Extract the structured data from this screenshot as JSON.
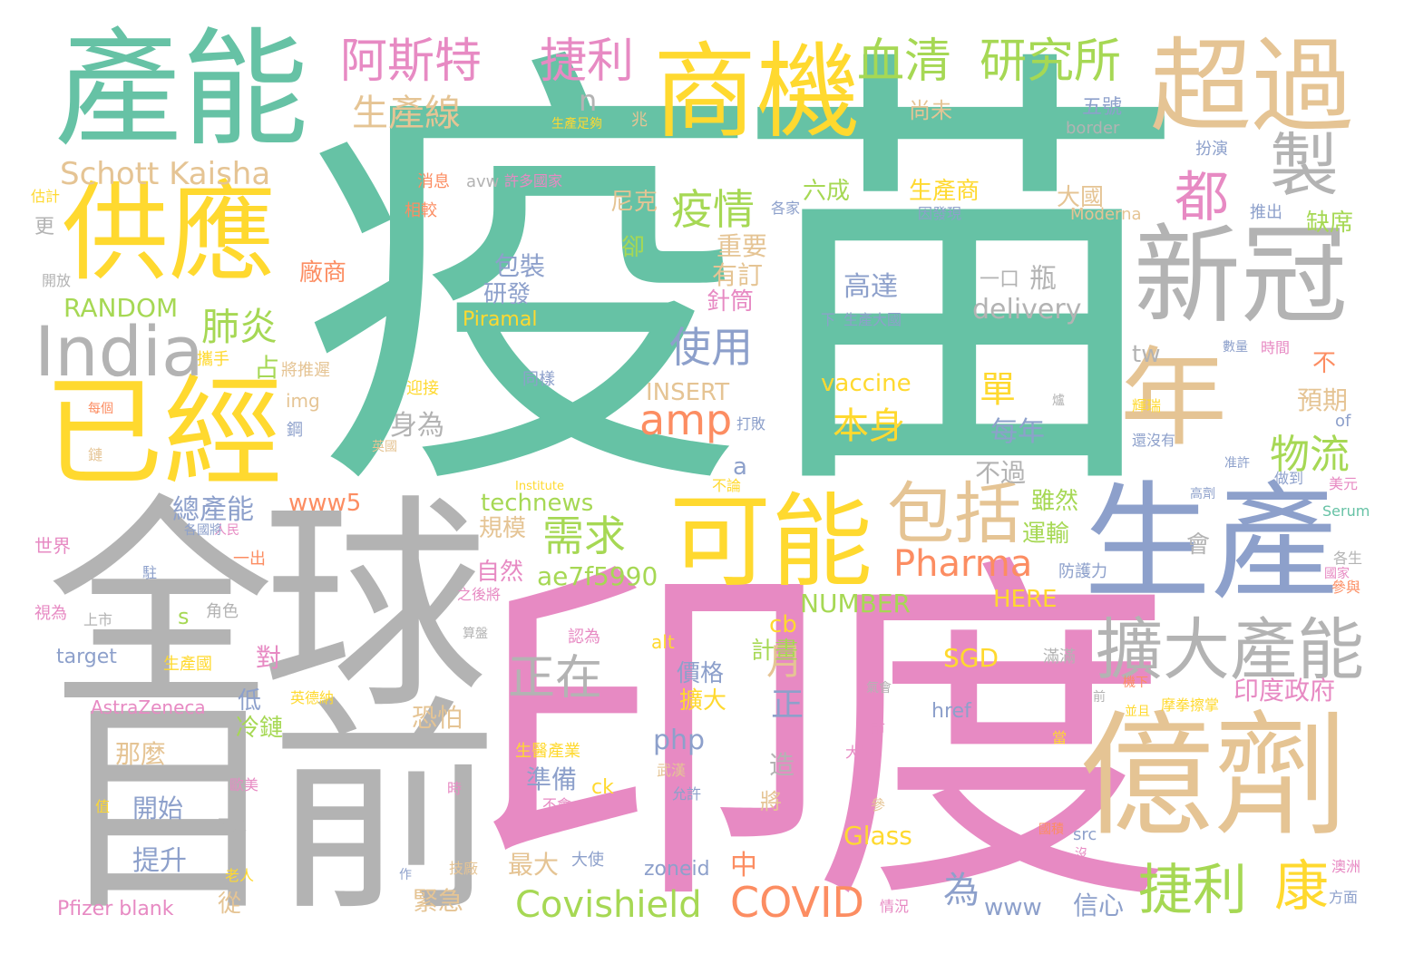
{
  "palette": {
    "green": "#66c2a5",
    "orange": "#fc8d62",
    "blue": "#8da0cb",
    "pink": "#e78ac3",
    "lime": "#a6d854",
    "yellow": "#ffd92f",
    "tan": "#e5c494",
    "gray": "#b3b3b3"
  },
  "words": [
    {
      "text": "疫苗",
      "color": "green"
    },
    {
      "text": "印度",
      "color": "pink"
    },
    {
      "text": "全球",
      "color": "gray"
    },
    {
      "text": "目前",
      "color": "gray"
    },
    {
      "text": "產能",
      "color": "green"
    },
    {
      "text": "供應",
      "color": "yellow"
    },
    {
      "text": "已經",
      "color": "yellow"
    },
    {
      "text": "商機",
      "color": "yellow"
    },
    {
      "text": "超過",
      "color": "tan"
    },
    {
      "text": "新冠",
      "color": "gray"
    },
    {
      "text": "年",
      "color": "tan"
    },
    {
      "text": "生產",
      "color": "blue"
    },
    {
      "text": "億劑",
      "color": "tan"
    },
    {
      "text": "可能",
      "color": "yellow"
    },
    {
      "text": "包括",
      "color": "tan"
    },
    {
      "text": "擴大產能",
      "color": "gray"
    },
    {
      "text": "India",
      "color": "gray"
    },
    {
      "text": "製",
      "color": "gray"
    },
    {
      "text": "都",
      "color": "pink"
    },
    {
      "text": "阿斯特",
      "color": "pink"
    },
    {
      "text": "捷利",
      "color": "pink"
    },
    {
      "text": "血清",
      "color": "lime"
    },
    {
      "text": "研究所",
      "color": "lime"
    },
    {
      "text": "生產線",
      "color": "tan"
    },
    {
      "text": "Schott Kaisha",
      "color": "tan"
    },
    {
      "text": "疫情",
      "color": "lime"
    },
    {
      "text": "肺炎",
      "color": "lime"
    },
    {
      "text": "使用",
      "color": "blue"
    },
    {
      "text": "amp",
      "color": "orange"
    },
    {
      "text": "高達",
      "color": "blue"
    },
    {
      "text": "瓶",
      "color": "gray"
    },
    {
      "text": "一口",
      "color": "gray"
    },
    {
      "text": "delivery",
      "color": "gray"
    },
    {
      "text": "vaccine",
      "color": "yellow"
    },
    {
      "text": "單",
      "color": "yellow"
    },
    {
      "text": "本身",
      "color": "yellow"
    },
    {
      "text": "每年",
      "color": "blue"
    },
    {
      "text": "需求",
      "color": "lime"
    },
    {
      "text": "正在",
      "color": "gray"
    },
    {
      "text": "Pharma",
      "color": "orange"
    },
    {
      "text": "Covishield",
      "color": "lime"
    },
    {
      "text": "COVID",
      "color": "orange"
    },
    {
      "text": "捷利",
      "color": "lime"
    },
    {
      "text": "康",
      "color": "yellow"
    },
    {
      "text": "物流",
      "color": "lime"
    },
    {
      "text": "RANDOM",
      "color": "lime"
    },
    {
      "text": "Piramal",
      "color": "yellow"
    },
    {
      "text": "INSERT",
      "color": "tan"
    },
    {
      "text": "technews",
      "color": "lime"
    },
    {
      "text": "ae7f5990",
      "color": "lime"
    },
    {
      "text": "www5",
      "color": "orange"
    },
    {
      "text": "NUMBER",
      "color": "lime"
    },
    {
      "text": "HERE",
      "color": "yellow"
    },
    {
      "text": "SGD",
      "color": "yellow"
    },
    {
      "text": "Glass",
      "color": "yellow"
    },
    {
      "text": "www",
      "color": "blue"
    },
    {
      "text": "AstraZeneca",
      "color": "pink"
    },
    {
      "text": "Pfizer blank",
      "color": "pink"
    },
    {
      "text": "target",
      "color": "blue"
    },
    {
      "text": "php",
      "color": "blue"
    },
    {
      "text": "zoneid",
      "color": "blue"
    },
    {
      "text": "href",
      "color": "blue"
    },
    {
      "text": "Moderna",
      "color": "tan"
    },
    {
      "text": "border",
      "color": "gray"
    },
    {
      "text": "avw",
      "color": "gray"
    },
    {
      "text": "Institute",
      "color": "yellow"
    },
    {
      "text": "Serum",
      "color": "green"
    },
    {
      "text": "alt",
      "color": "yellow"
    },
    {
      "text": "ck",
      "color": "yellow"
    },
    {
      "text": "cb",
      "color": "yellow"
    },
    {
      "text": "tw",
      "color": "gray"
    },
    {
      "text": "img",
      "color": "tan"
    },
    {
      "text": "of",
      "color": "blue"
    },
    {
      "text": "src",
      "color": "blue"
    },
    {
      "text": "n",
      "color": "gray"
    },
    {
      "text": "a",
      "color": "blue"
    },
    {
      "text": "s",
      "color": "lime"
    },
    {
      "text": "正",
      "color": "blue"
    },
    {
      "text": "月",
      "color": "tan"
    },
    {
      "text": "為",
      "color": "blue"
    },
    {
      "text": "中",
      "color": "orange"
    },
    {
      "text": "包裝",
      "color": "blue"
    },
    {
      "text": "研發",
      "color": "blue"
    },
    {
      "text": "生產商",
      "color": "yellow"
    },
    {
      "text": "六成",
      "color": "lime"
    },
    {
      "text": "大國",
      "color": "tan"
    },
    {
      "text": "尼克",
      "color": "tan"
    },
    {
      "text": "重要",
      "color": "tan"
    },
    {
      "text": "有訂",
      "color": "tan"
    },
    {
      "text": "針筒",
      "color": "pink"
    },
    {
      "text": "廠商",
      "color": "orange"
    },
    {
      "text": "占",
      "color": "lime"
    },
    {
      "text": "身為",
      "color": "gray"
    },
    {
      "text": "不過",
      "color": "gray"
    },
    {
      "text": "雖然",
      "color": "lime"
    },
    {
      "text": "運輸",
      "color": "lime"
    },
    {
      "text": "規模",
      "color": "tan"
    },
    {
      "text": "自然",
      "color": "pink"
    },
    {
      "text": "總產能",
      "color": "blue"
    },
    {
      "text": "計畫",
      "color": "lime"
    },
    {
      "text": "價格",
      "color": "blue"
    },
    {
      "text": "擴大",
      "color": "yellow"
    },
    {
      "text": "準備",
      "color": "blue"
    },
    {
      "text": "恐怕",
      "color": "tan"
    },
    {
      "text": "最大",
      "color": "tan"
    },
    {
      "text": "緊急",
      "color": "tan"
    },
    {
      "text": "信心",
      "color": "blue"
    },
    {
      "text": "低",
      "color": "blue"
    },
    {
      "text": "冷鏈",
      "color": "lime"
    },
    {
      "text": "對",
      "color": "pink"
    },
    {
      "text": "那麼",
      "color": "tan"
    },
    {
      "text": "開始",
      "color": "blue"
    },
    {
      "text": "提升",
      "color": "blue"
    },
    {
      "text": "從",
      "color": "tan"
    },
    {
      "text": "將",
      "color": "tan"
    },
    {
      "text": "造",
      "color": "gray"
    },
    {
      "text": "印度政府",
      "color": "pink"
    },
    {
      "text": "預期",
      "color": "tan"
    },
    {
      "text": "缺席",
      "color": "lime"
    },
    {
      "text": "不",
      "color": "orange"
    },
    {
      "text": "會",
      "color": "gray"
    },
    {
      "text": "卻",
      "color": "lime"
    },
    {
      "text": "尚未",
      "color": "tan"
    },
    {
      "text": "五號",
      "color": "blue"
    },
    {
      "text": "扮演",
      "color": "blue"
    },
    {
      "text": "推出",
      "color": "blue"
    },
    {
      "text": "兆",
      "color": "tan"
    },
    {
      "text": "生產足夠",
      "color": "yellow"
    },
    {
      "text": "消息",
      "color": "orange"
    },
    {
      "text": "許多國家",
      "color": "pink"
    },
    {
      "text": "各家",
      "color": "blue"
    },
    {
      "text": "因發現",
      "color": "blue"
    },
    {
      "text": "估計",
      "color": "yellow"
    },
    {
      "text": "相較",
      "color": "orange"
    },
    {
      "text": "更",
      "color": "gray"
    },
    {
      "text": "開放",
      "color": "gray"
    },
    {
      "text": "攜手",
      "color": "yellow"
    },
    {
      "text": "將推遲",
      "color": "tan"
    },
    {
      "text": "迎接",
      "color": "yellow"
    },
    {
      "text": "同樣",
      "color": "blue"
    },
    {
      "text": "下",
      "color": "blue"
    },
    {
      "text": "生產大國",
      "color": "blue"
    },
    {
      "text": "每個",
      "color": "orange"
    },
    {
      "text": "鋼",
      "color": "blue"
    },
    {
      "text": "鏈",
      "color": "tan"
    },
    {
      "text": "英國",
      "color": "tan"
    },
    {
      "text": "打敗",
      "color": "blue"
    },
    {
      "text": "爐",
      "color": "gray"
    },
    {
      "text": "輝瑞",
      "color": "yellow"
    },
    {
      "text": "還沒有",
      "color": "blue"
    },
    {
      "text": "數量",
      "color": "blue"
    },
    {
      "text": "時間",
      "color": "pink"
    },
    {
      "text": "不論",
      "color": "yellow"
    },
    {
      "text": "准許",
      "color": "blue"
    },
    {
      "text": "做到",
      "color": "blue"
    },
    {
      "text": "美元",
      "color": "pink"
    },
    {
      "text": "高劑",
      "color": "blue"
    },
    {
      "text": "世界",
      "color": "pink"
    },
    {
      "text": "人民",
      "color": "pink"
    },
    {
      "text": "各國將",
      "color": "blue"
    },
    {
      "text": "一出",
      "color": "orange"
    },
    {
      "text": "駐",
      "color": "blue"
    },
    {
      "text": "之後將",
      "color": "pink"
    },
    {
      "text": "防護力",
      "color": "blue"
    },
    {
      "text": "國家",
      "color": "pink"
    },
    {
      "text": "各生",
      "color": "gray"
    },
    {
      "text": "參與",
      "color": "orange"
    },
    {
      "text": "視為",
      "color": "pink"
    },
    {
      "text": "上市",
      "color": "gray"
    },
    {
      "text": "角色",
      "color": "gray"
    },
    {
      "text": "認為",
      "color": "pink"
    },
    {
      "text": "算盤",
      "color": "gray"
    },
    {
      "text": "氣會",
      "color": "gray"
    },
    {
      "text": "滿滿",
      "color": "gray"
    },
    {
      "text": "機下",
      "color": "orange"
    },
    {
      "text": "生產國",
      "color": "yellow"
    },
    {
      "text": "前",
      "color": "gray"
    },
    {
      "text": "英德納",
      "color": "yellow"
    },
    {
      "text": "摩拳擦掌",
      "color": "yellow"
    },
    {
      "text": "並且",
      "color": "yellow"
    },
    {
      "text": "市",
      "color": "pink"
    },
    {
      "text": "大量",
      "color": "pink"
    },
    {
      "text": "當",
      "color": "yellow"
    },
    {
      "text": "生醫產業",
      "color": "yellow"
    },
    {
      "text": "武漢",
      "color": "tan"
    },
    {
      "text": "歐美",
      "color": "pink"
    },
    {
      "text": "允許",
      "color": "blue"
    },
    {
      "text": "不會",
      "color": "pink"
    },
    {
      "text": "時",
      "color": "pink"
    },
    {
      "text": "值",
      "color": "yellow"
    },
    {
      "text": "不足",
      "color": "gray"
    },
    {
      "text": "參",
      "color": "tan"
    },
    {
      "text": "國積",
      "color": "orange"
    },
    {
      "text": "老人",
      "color": "yellow"
    },
    {
      "text": "作",
      "color": "blue"
    },
    {
      "text": "技廠",
      "color": "tan"
    },
    {
      "text": "大使",
      "color": "blue"
    },
    {
      "text": "情況",
      "color": "pink"
    },
    {
      "text": "沒",
      "color": "pink"
    },
    {
      "text": "澳洲",
      "color": "pink"
    },
    {
      "text": "方面",
      "color": "blue"
    }
  ]
}
